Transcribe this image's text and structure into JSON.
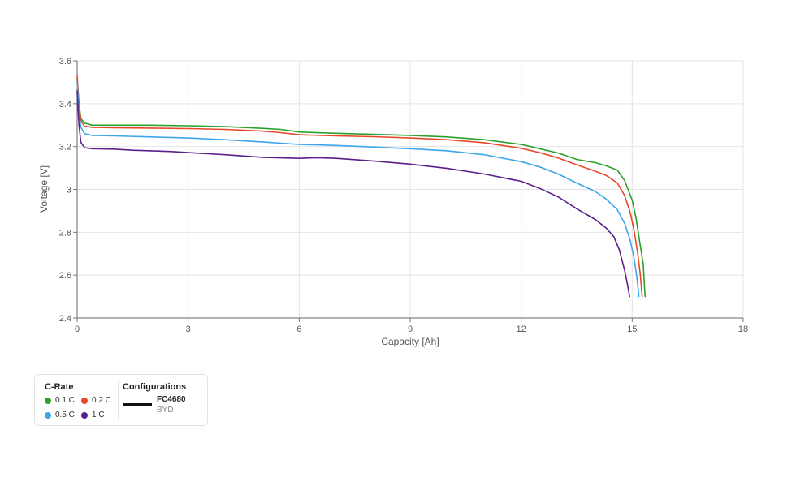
{
  "chart_data": {
    "type": "line",
    "title": "",
    "xlabel": "Capacity [Ah]",
    "ylabel": "Voltage [V]",
    "xlim": [
      0,
      18
    ],
    "ylim": [
      2.4,
      3.6
    ],
    "x_ticks": [
      0,
      3,
      6,
      9,
      12,
      15,
      18
    ],
    "x_tick_labels": [
      "0",
      "3",
      "6",
      "9",
      "12",
      "15",
      "18"
    ],
    "y_ticks": [
      2.4,
      2.6,
      2.8,
      3.0,
      3.2,
      3.4,
      3.6
    ],
    "y_tick_labels": [
      "2.4",
      "2.6",
      "2.8",
      "3",
      "3.2",
      "3.4",
      "3.6"
    ],
    "grid": true,
    "legend_position": "bottom-left",
    "series": [
      {
        "name": "0.1 C",
        "color": "#2ca02c",
        "points": [
          [
            0,
            3.52
          ],
          [
            0.05,
            3.4
          ],
          [
            0.1,
            3.33
          ],
          [
            0.2,
            3.31
          ],
          [
            0.4,
            3.3
          ],
          [
            1,
            3.3
          ],
          [
            2,
            3.3
          ],
          [
            3,
            3.297
          ],
          [
            4,
            3.293
          ],
          [
            5,
            3.285
          ],
          [
            5.5,
            3.28
          ],
          [
            6,
            3.268
          ],
          [
            7,
            3.262
          ],
          [
            8,
            3.257
          ],
          [
            9,
            3.252
          ],
          [
            10,
            3.245
          ],
          [
            11,
            3.232
          ],
          [
            12,
            3.21
          ],
          [
            12.5,
            3.19
          ],
          [
            13,
            3.17
          ],
          [
            13.5,
            3.14
          ],
          [
            14,
            3.125
          ],
          [
            14.3,
            3.11
          ],
          [
            14.6,
            3.09
          ],
          [
            14.8,
            3.04
          ],
          [
            15.0,
            2.95
          ],
          [
            15.1,
            2.87
          ],
          [
            15.2,
            2.76
          ],
          [
            15.3,
            2.65
          ],
          [
            15.33,
            2.55
          ],
          [
            15.35,
            2.5
          ]
        ]
      },
      {
        "name": "0.2 C",
        "color": "#e8472a",
        "points": [
          [
            0,
            3.53
          ],
          [
            0.05,
            3.39
          ],
          [
            0.1,
            3.32
          ],
          [
            0.2,
            3.295
          ],
          [
            0.4,
            3.29
          ],
          [
            1,
            3.288
          ],
          [
            2,
            3.286
          ],
          [
            3,
            3.284
          ],
          [
            4,
            3.28
          ],
          [
            5,
            3.272
          ],
          [
            5.5,
            3.265
          ],
          [
            6,
            3.255
          ],
          [
            7,
            3.25
          ],
          [
            8,
            3.246
          ],
          [
            9,
            3.24
          ],
          [
            10,
            3.232
          ],
          [
            11,
            3.218
          ],
          [
            12,
            3.192
          ],
          [
            12.5,
            3.172
          ],
          [
            13,
            3.147
          ],
          [
            13.5,
            3.115
          ],
          [
            14,
            3.085
          ],
          [
            14.3,
            3.065
          ],
          [
            14.6,
            3.03
          ],
          [
            14.8,
            2.97
          ],
          [
            14.95,
            2.89
          ],
          [
            15.05,
            2.81
          ],
          [
            15.15,
            2.7
          ],
          [
            15.22,
            2.6
          ],
          [
            15.26,
            2.52
          ],
          [
            15.27,
            2.5
          ]
        ]
      },
      {
        "name": "0.5 C",
        "color": "#3ba7ea",
        "points": [
          [
            0,
            3.5
          ],
          [
            0.05,
            3.36
          ],
          [
            0.1,
            3.29
          ],
          [
            0.2,
            3.26
          ],
          [
            0.4,
            3.252
          ],
          [
            1,
            3.25
          ],
          [
            2,
            3.245
          ],
          [
            3,
            3.24
          ],
          [
            4,
            3.232
          ],
          [
            5,
            3.222
          ],
          [
            6,
            3.21
          ],
          [
            7,
            3.205
          ],
          [
            8,
            3.198
          ],
          [
            9,
            3.19
          ],
          [
            10,
            3.18
          ],
          [
            11,
            3.162
          ],
          [
            12,
            3.13
          ],
          [
            12.5,
            3.105
          ],
          [
            13,
            3.072
          ],
          [
            13.5,
            3.03
          ],
          [
            14,
            2.99
          ],
          [
            14.3,
            2.955
          ],
          [
            14.6,
            2.905
          ],
          [
            14.8,
            2.84
          ],
          [
            14.95,
            2.76
          ],
          [
            15.05,
            2.68
          ],
          [
            15.12,
            2.6
          ],
          [
            15.17,
            2.52
          ],
          [
            15.18,
            2.5
          ]
        ]
      },
      {
        "name": "1 C",
        "color": "#5b1f8a",
        "points": [
          [
            0,
            3.46
          ],
          [
            0.05,
            3.3
          ],
          [
            0.1,
            3.22
          ],
          [
            0.2,
            3.195
          ],
          [
            0.4,
            3.19
          ],
          [
            1,
            3.188
          ],
          [
            1.5,
            3.183
          ],
          [
            2,
            3.18
          ],
          [
            2.5,
            3.177
          ],
          [
            3,
            3.172
          ],
          [
            4,
            3.162
          ],
          [
            5,
            3.15
          ],
          [
            6,
            3.145
          ],
          [
            6.5,
            3.148
          ],
          [
            7,
            3.145
          ],
          [
            8,
            3.133
          ],
          [
            9,
            3.118
          ],
          [
            10,
            3.098
          ],
          [
            11,
            3.072
          ],
          [
            12,
            3.038
          ],
          [
            12.5,
            3.005
          ],
          [
            13,
            2.965
          ],
          [
            13.5,
            2.91
          ],
          [
            14,
            2.86
          ],
          [
            14.3,
            2.82
          ],
          [
            14.5,
            2.78
          ],
          [
            14.65,
            2.72
          ],
          [
            14.8,
            2.62
          ],
          [
            14.88,
            2.55
          ],
          [
            14.93,
            2.5
          ]
        ]
      }
    ]
  },
  "legend": {
    "crate_title": "C-Rate",
    "crate_items": [
      {
        "label": "0.1 C",
        "color": "#2ca02c"
      },
      {
        "label": "0.2 C",
        "color": "#e8472a"
      },
      {
        "label": "0.5 C",
        "color": "#3ba7ea"
      },
      {
        "label": "1 C",
        "color": "#5b1f8a"
      }
    ],
    "config_title": "Configurations",
    "config_name": "FC4680",
    "config_sub": "BYD"
  }
}
